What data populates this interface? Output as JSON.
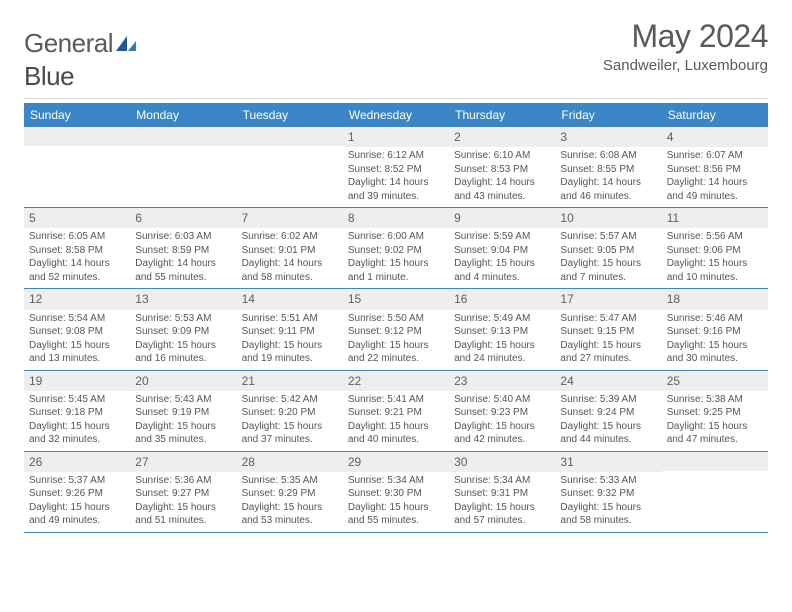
{
  "logo": {
    "text1": "General",
    "text2": "Blue"
  },
  "title": "May 2024",
  "location": "Sandweiler, Luxembourg",
  "colors": {
    "header_bar": "#3b86c6",
    "day_num_bg": "#eceef0",
    "text": "#4a4a4a",
    "rule": "#3b86c6"
  },
  "dow": [
    "Sunday",
    "Monday",
    "Tuesday",
    "Wednesday",
    "Thursday",
    "Friday",
    "Saturday"
  ],
  "weeks": [
    [
      null,
      null,
      null,
      {
        "n": "1",
        "sr": "6:12 AM",
        "ss": "8:52 PM",
        "dl": "14 hours and 39 minutes."
      },
      {
        "n": "2",
        "sr": "6:10 AM",
        "ss": "8:53 PM",
        "dl": "14 hours and 43 minutes."
      },
      {
        "n": "3",
        "sr": "6:08 AM",
        "ss": "8:55 PM",
        "dl": "14 hours and 46 minutes."
      },
      {
        "n": "4",
        "sr": "6:07 AM",
        "ss": "8:56 PM",
        "dl": "14 hours and 49 minutes."
      }
    ],
    [
      {
        "n": "5",
        "sr": "6:05 AM",
        "ss": "8:58 PM",
        "dl": "14 hours and 52 minutes."
      },
      {
        "n": "6",
        "sr": "6:03 AM",
        "ss": "8:59 PM",
        "dl": "14 hours and 55 minutes."
      },
      {
        "n": "7",
        "sr": "6:02 AM",
        "ss": "9:01 PM",
        "dl": "14 hours and 58 minutes."
      },
      {
        "n": "8",
        "sr": "6:00 AM",
        "ss": "9:02 PM",
        "dl": "15 hours and 1 minute."
      },
      {
        "n": "9",
        "sr": "5:59 AM",
        "ss": "9:04 PM",
        "dl": "15 hours and 4 minutes."
      },
      {
        "n": "10",
        "sr": "5:57 AM",
        "ss": "9:05 PM",
        "dl": "15 hours and 7 minutes."
      },
      {
        "n": "11",
        "sr": "5:56 AM",
        "ss": "9:06 PM",
        "dl": "15 hours and 10 minutes."
      }
    ],
    [
      {
        "n": "12",
        "sr": "5:54 AM",
        "ss": "9:08 PM",
        "dl": "15 hours and 13 minutes."
      },
      {
        "n": "13",
        "sr": "5:53 AM",
        "ss": "9:09 PM",
        "dl": "15 hours and 16 minutes."
      },
      {
        "n": "14",
        "sr": "5:51 AM",
        "ss": "9:11 PM",
        "dl": "15 hours and 19 minutes."
      },
      {
        "n": "15",
        "sr": "5:50 AM",
        "ss": "9:12 PM",
        "dl": "15 hours and 22 minutes."
      },
      {
        "n": "16",
        "sr": "5:49 AM",
        "ss": "9:13 PM",
        "dl": "15 hours and 24 minutes."
      },
      {
        "n": "17",
        "sr": "5:47 AM",
        "ss": "9:15 PM",
        "dl": "15 hours and 27 minutes."
      },
      {
        "n": "18",
        "sr": "5:46 AM",
        "ss": "9:16 PM",
        "dl": "15 hours and 30 minutes."
      }
    ],
    [
      {
        "n": "19",
        "sr": "5:45 AM",
        "ss": "9:18 PM",
        "dl": "15 hours and 32 minutes."
      },
      {
        "n": "20",
        "sr": "5:43 AM",
        "ss": "9:19 PM",
        "dl": "15 hours and 35 minutes."
      },
      {
        "n": "21",
        "sr": "5:42 AM",
        "ss": "9:20 PM",
        "dl": "15 hours and 37 minutes."
      },
      {
        "n": "22",
        "sr": "5:41 AM",
        "ss": "9:21 PM",
        "dl": "15 hours and 40 minutes."
      },
      {
        "n": "23",
        "sr": "5:40 AM",
        "ss": "9:23 PM",
        "dl": "15 hours and 42 minutes."
      },
      {
        "n": "24",
        "sr": "5:39 AM",
        "ss": "9:24 PM",
        "dl": "15 hours and 44 minutes."
      },
      {
        "n": "25",
        "sr": "5:38 AM",
        "ss": "9:25 PM",
        "dl": "15 hours and 47 minutes."
      }
    ],
    [
      {
        "n": "26",
        "sr": "5:37 AM",
        "ss": "9:26 PM",
        "dl": "15 hours and 49 minutes."
      },
      {
        "n": "27",
        "sr": "5:36 AM",
        "ss": "9:27 PM",
        "dl": "15 hours and 51 minutes."
      },
      {
        "n": "28",
        "sr": "5:35 AM",
        "ss": "9:29 PM",
        "dl": "15 hours and 53 minutes."
      },
      {
        "n": "29",
        "sr": "5:34 AM",
        "ss": "9:30 PM",
        "dl": "15 hours and 55 minutes."
      },
      {
        "n": "30",
        "sr": "5:34 AM",
        "ss": "9:31 PM",
        "dl": "15 hours and 57 minutes."
      },
      {
        "n": "31",
        "sr": "5:33 AM",
        "ss": "9:32 PM",
        "dl": "15 hours and 58 minutes."
      },
      null
    ]
  ],
  "labels": {
    "sunrise": "Sunrise: ",
    "sunset": "Sunset: ",
    "daylight": "Daylight: "
  }
}
